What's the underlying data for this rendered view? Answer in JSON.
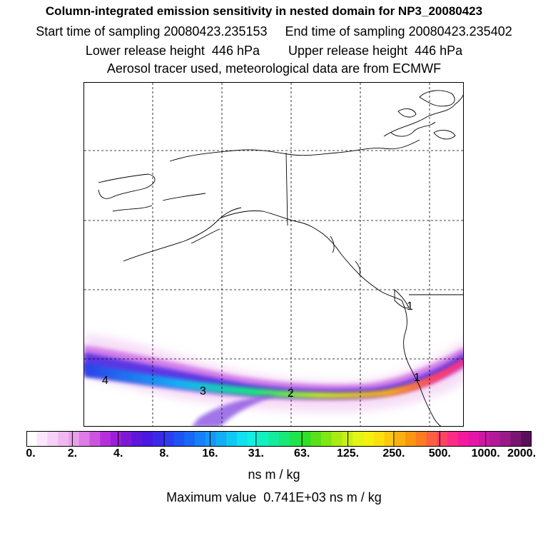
{
  "header": {
    "title": "Column-integrated emission sensitivity in nested domain for NP3_20080423",
    "sampling_line": "Start time of sampling 20080423.235153     End time of sampling 20080423.235402",
    "release_line": "Lower release height  446 hPa        Upper release height  446 hPa",
    "tracer_line": "Aerosol tracer used, meteorological data are from ECMWF"
  },
  "map": {
    "markers": [
      {
        "label": "1"
      },
      {
        "label": "1"
      },
      {
        "label": "2"
      },
      {
        "label": "3"
      },
      {
        "label": "4"
      }
    ]
  },
  "colorbar": {
    "tick_labels": [
      "0.",
      "2.",
      "4.",
      "8.",
      "16.",
      "31.",
      "63.",
      "125.",
      "250.",
      "500.",
      "1000.",
      "2000."
    ],
    "colors": [
      "#ffffff",
      "#fbe6fb",
      "#f6d0f6",
      "#f0b8f0",
      "#e9a0ec",
      "#dc7ce6",
      "#cc55e0",
      "#b530dc",
      "#9d1ed8",
      "#7d18d8",
      "#5d16da",
      "#4a18e0",
      "#3a2ae8",
      "#2c3ef0",
      "#1e54f4",
      "#1868f6",
      "#1680f8",
      "#1498f8",
      "#12aef6",
      "#10c8f4",
      "#10e0f0",
      "#10f0e2",
      "#10f0c0",
      "#14ec9c",
      "#18e878",
      "#1ee450",
      "#2ee028",
      "#58e018",
      "#80e614",
      "#a8ec14",
      "#c8f014",
      "#e4f414",
      "#f4f010",
      "#fce010",
      "#fcc810",
      "#fcb010",
      "#fc9610",
      "#fc7c20",
      "#fc6040",
      "#fc4464",
      "#fc2c84",
      "#f41a9c",
      "#e416a8",
      "#cc18a4",
      "#b41a98",
      "#9a1a88",
      "#7a1670",
      "#5a1058"
    ],
    "units": "ns m / kg"
  },
  "max_value": "Maximum value  0.741E+03 ns m / kg"
}
